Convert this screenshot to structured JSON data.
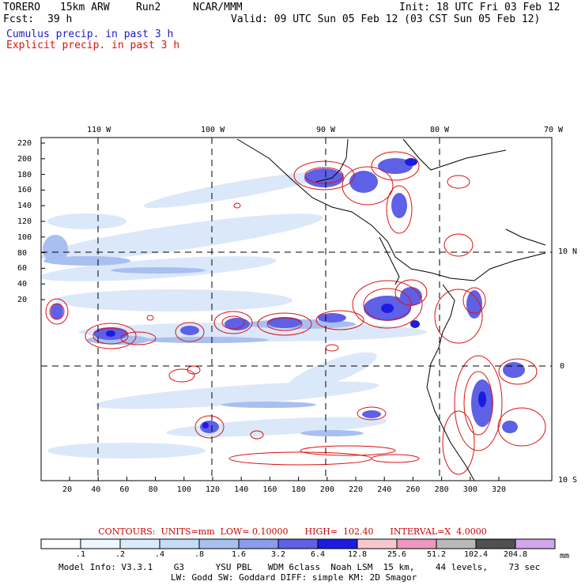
{
  "header": {
    "model": "TORERO",
    "resolution": "15km ARW",
    "run": "Run2",
    "org": "NCAR/MMM",
    "init": "Init: 18 UTC Fri 03 Feb 12",
    "fcst_label": "Fcst:",
    "fcst_hours": "39 h",
    "valid": "Valid: 09 UTC Sun 05 Feb 12 (03 CST Sun 05 Feb 12)",
    "field1": "Cumulus precip. in past 3 h",
    "field2": "Explicit precip. in past 3 h"
  },
  "colors": {
    "cumulus": "#1a1acc",
    "explicit": "#dd1111"
  },
  "map": {
    "top_lon_labels": [
      "110 W",
      "100 W",
      "90 W",
      "80 W",
      "70 W"
    ],
    "right_lat_labels": [
      "10 N",
      "0",
      "10 S"
    ],
    "left_y_ticks": [
      "220",
      "200",
      "180",
      "160",
      "140",
      "120",
      "100",
      "80",
      "60",
      "40",
      "20"
    ],
    "bottom_x_ticks": [
      "20",
      "40",
      "60",
      "80",
      "100",
      "120",
      "140",
      "160",
      "180",
      "200",
      "220",
      "240",
      "260",
      "280",
      "300",
      "320"
    ]
  },
  "contours": {
    "units_label": "CONTOURS:  UNITS=mm",
    "low": "LOW= 0.10000",
    "high": "HIGH=  102.40",
    "interval": "INTERVAL=X  4.0000"
  },
  "colorbar": {
    "colors": [
      "#ffffff",
      "#eef6ff",
      "#dcebfb",
      "#c4dcf6",
      "#a7c2f0",
      "#8a9cec",
      "#5e60e6",
      "#1c1ce0",
      "#f7c9cc",
      "#f096c0",
      "#b9b9b9",
      "#505050",
      "#d3a5ea"
    ],
    "labels": [
      ".1",
      ".2",
      ".4",
      ".8",
      "1.6",
      "3.2",
      "6.4",
      "12.8",
      "25.6",
      "51.2",
      "102.4",
      "204.8"
    ],
    "unit": "mm"
  },
  "footer": {
    "line1": "Model Info: V3.3.1    G3      YSU PBL   WDM 6class  Noah LSM  15 km,    44 levels,    73 sec",
    "line2": "LW: Godd SW: Goddard DIFF: simple KM: 2D Smagor"
  }
}
